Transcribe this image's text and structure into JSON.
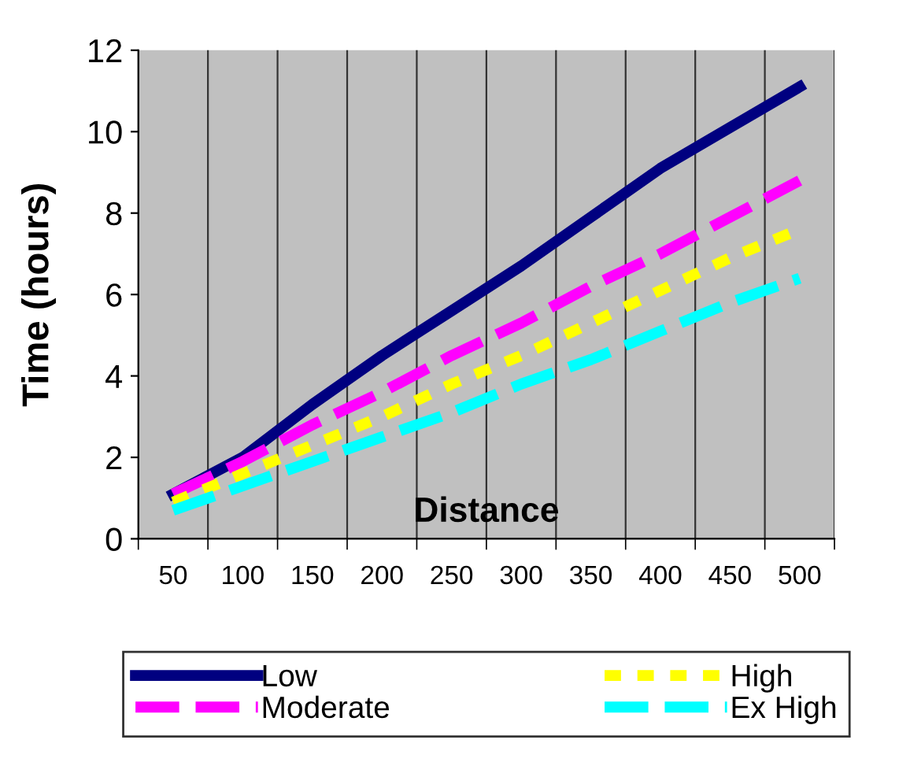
{
  "chart_data": {
    "type": "line",
    "xlabel": "Distance",
    "ylabel": "Time (hours)",
    "categories": [
      "50",
      "100",
      "150",
      "200",
      "250",
      "300",
      "350",
      "400",
      "450",
      "500"
    ],
    "series": [
      {
        "name": "Low",
        "color": "#000080",
        "line_style": "solid",
        "values": [
          1.1,
          2.0,
          3.3,
          4.5,
          5.6,
          6.7,
          7.9,
          9.1,
          10.1,
          11.1
        ]
      },
      {
        "name": "Moderate",
        "color": "#ff00ff",
        "line_style": "dashed",
        "values": [
          1.1,
          1.9,
          2.8,
          3.6,
          4.5,
          5.3,
          6.2,
          7.0,
          7.9,
          8.8
        ]
      },
      {
        "name": "High",
        "color": "#ffff00",
        "line_style": "dotted",
        "values": [
          0.9,
          1.6,
          2.3,
          3.0,
          3.8,
          4.5,
          5.3,
          6.1,
          6.9,
          7.6
        ]
      },
      {
        "name": "Ex High",
        "color": "#00ffff",
        "line_style": "dashed",
        "values": [
          0.7,
          1.3,
          1.9,
          2.5,
          3.1,
          3.8,
          4.4,
          5.1,
          5.8,
          6.4
        ]
      }
    ],
    "ylim": [
      0,
      12
    ],
    "yticks": [
      0,
      2,
      4,
      6,
      8,
      10,
      12
    ],
    "grid": "x",
    "legend": "bottom",
    "marker": "none"
  }
}
